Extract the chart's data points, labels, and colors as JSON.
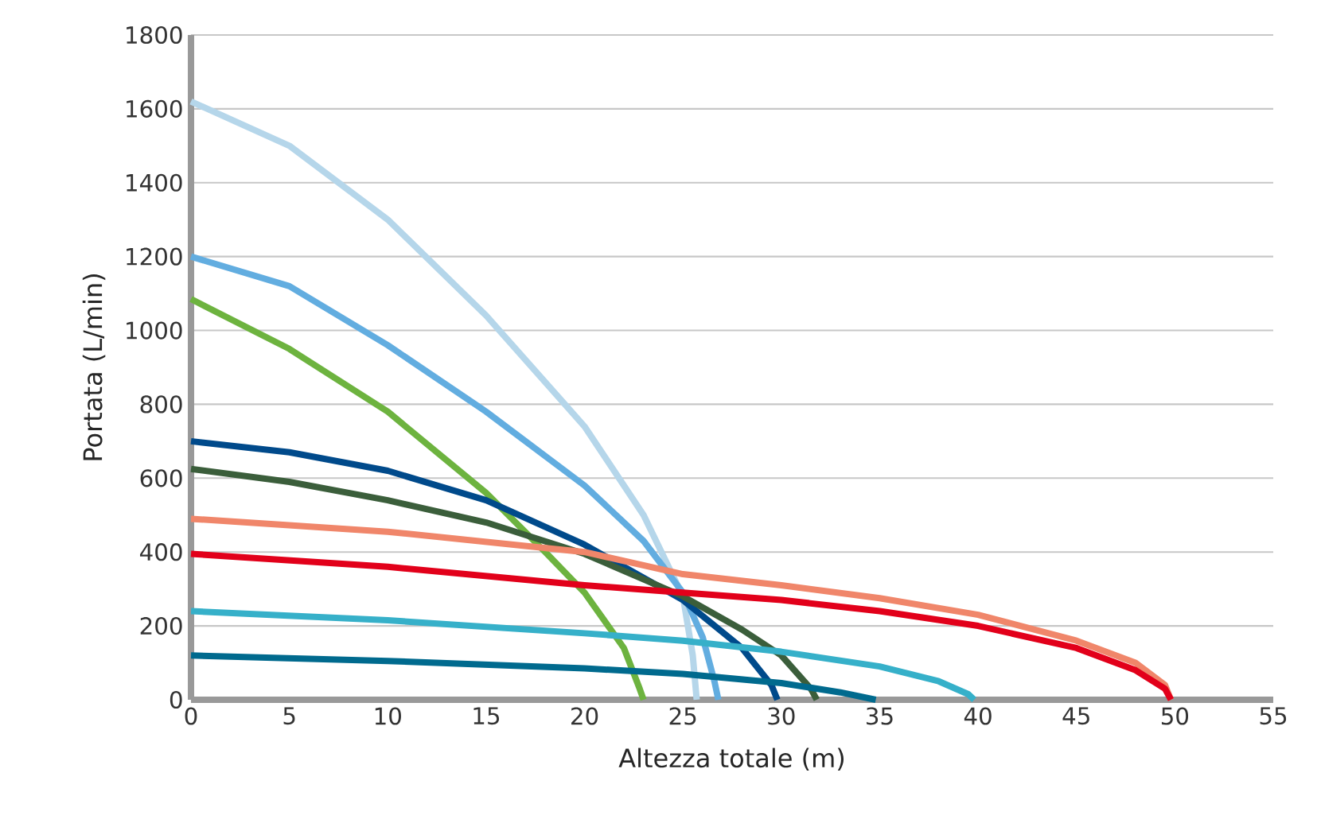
{
  "chart_data": {
    "type": "line",
    "xlabel": "Altezza totale (m)",
    "ylabel": "Portata (L/min)",
    "xlim": [
      0,
      55
    ],
    "ylim": [
      0,
      1800
    ],
    "xticks": [
      0,
      5,
      10,
      15,
      20,
      25,
      30,
      35,
      40,
      45,
      50,
      55
    ],
    "yticks": [
      0,
      200,
      400,
      600,
      800,
      1000,
      1200,
      1400,
      1600,
      1800
    ],
    "grid": "y",
    "marker": "none",
    "line_style": "solid",
    "series": [
      {
        "color": "#b5d6ea",
        "x": [
          0,
          5,
          10,
          15,
          20,
          23,
          25,
          25.5,
          25.7
        ],
        "values": [
          1620,
          1500,
          1300,
          1040,
          740,
          500,
          280,
          120,
          0
        ]
      },
      {
        "color": "#62ade0",
        "x": [
          0,
          5,
          10,
          15,
          20,
          23,
          25,
          26,
          26.6,
          26.8
        ],
        "values": [
          1200,
          1120,
          960,
          780,
          580,
          430,
          290,
          170,
          50,
          0
        ]
      },
      {
        "color": "#6db33f",
        "x": [
          0,
          5,
          10,
          15,
          18,
          20,
          22,
          22.8,
          23
        ],
        "values": [
          1085,
          950,
          780,
          560,
          400,
          290,
          140,
          30,
          0
        ]
      },
      {
        "color": "#004a8b",
        "x": [
          0,
          5,
          10,
          15,
          20,
          25,
          28,
          29.5,
          29.8
        ],
        "values": [
          700,
          670,
          620,
          540,
          420,
          270,
          140,
          40,
          0
        ]
      },
      {
        "color": "#3b5e3b",
        "x": [
          0,
          5,
          10,
          15,
          20,
          25,
          28,
          30,
          31.5,
          31.8
        ],
        "values": [
          625,
          590,
          540,
          480,
          395,
          280,
          190,
          120,
          30,
          0
        ]
      },
      {
        "color": "#f0866a",
        "x": [
          0,
          10,
          20,
          25,
          30,
          35,
          40,
          45,
          48,
          49.5,
          49.8
        ],
        "values": [
          490,
          455,
          400,
          340,
          310,
          275,
          230,
          160,
          100,
          40,
          0
        ]
      },
      {
        "color": "#e2001a",
        "x": [
          0,
          10,
          20,
          25,
          30,
          35,
          40,
          45,
          48,
          49.5,
          49.8
        ],
        "values": [
          395,
          360,
          310,
          290,
          270,
          240,
          200,
          140,
          80,
          30,
          0
        ]
      },
      {
        "color": "#36b0c9",
        "x": [
          0,
          10,
          20,
          25,
          30,
          35,
          38,
          39.5,
          39.8
        ],
        "values": [
          240,
          215,
          180,
          160,
          130,
          90,
          50,
          15,
          0
        ]
      },
      {
        "color": "#006a8e",
        "x": [
          0,
          10,
          20,
          25,
          30,
          33,
          34.8
        ],
        "values": [
          120,
          105,
          85,
          70,
          45,
          20,
          0
        ]
      }
    ]
  }
}
